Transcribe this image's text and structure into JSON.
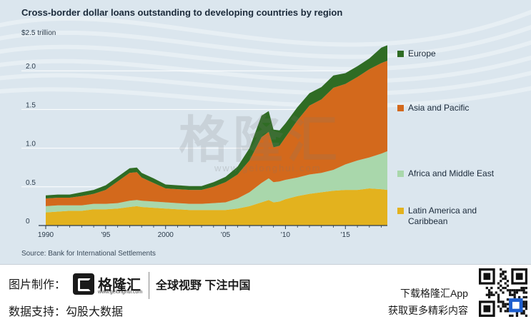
{
  "chart_data": {
    "type": "area",
    "stacked": true,
    "title": "Cross-border dollar loans outstanding to developing countries by region",
    "y_unit_label": "$2.5 trillion",
    "ylim": [
      0,
      2.5
    ],
    "xlim": [
      1990,
      2018.5
    ],
    "x_ticks": [
      1990,
      1995,
      2000,
      2005,
      2010,
      2015
    ],
    "x_tick_labels": [
      "1990",
      "'95",
      "2000",
      "'05",
      "'10",
      "'15"
    ],
    "y_ticks": [
      0,
      0.5,
      1.0,
      1.5,
      2.0
    ],
    "y_tick_labels": [
      "0",
      "0.5",
      "1.0",
      "1.5",
      "2.0"
    ],
    "x": [
      1990,
      1991,
      1992,
      1993,
      1994,
      1995,
      1996,
      1997,
      1997.6,
      1998,
      1999,
      2000,
      2001,
      2002,
      2003,
      2004,
      2005,
      2006,
      2007,
      2008,
      2008.6,
      2009,
      2009.5,
      2010,
      2011,
      2012,
      2013,
      2014,
      2015,
      2016,
      2017,
      2018,
      2018.5
    ],
    "series": [
      {
        "name": "Latin America and Caribbean",
        "color": "#e3b21e",
        "values": [
          0.17,
          0.18,
          0.19,
          0.19,
          0.21,
          0.21,
          0.22,
          0.24,
          0.25,
          0.24,
          0.23,
          0.22,
          0.21,
          0.2,
          0.2,
          0.2,
          0.2,
          0.22,
          0.25,
          0.3,
          0.33,
          0.3,
          0.31,
          0.34,
          0.38,
          0.41,
          0.43,
          0.45,
          0.46,
          0.46,
          0.48,
          0.47,
          0.46
        ]
      },
      {
        "name": "Africa and Middle East",
        "color": "#a9d7ab",
        "values": [
          0.08,
          0.08,
          0.07,
          0.07,
          0.07,
          0.07,
          0.07,
          0.08,
          0.08,
          0.08,
          0.08,
          0.08,
          0.08,
          0.08,
          0.08,
          0.09,
          0.1,
          0.13,
          0.18,
          0.25,
          0.28,
          0.26,
          0.26,
          0.25,
          0.24,
          0.25,
          0.25,
          0.27,
          0.33,
          0.38,
          0.4,
          0.46,
          0.5
        ]
      },
      {
        "name": "Asia and Pacific",
        "color": "#d3691c",
        "values": [
          0.1,
          0.1,
          0.1,
          0.12,
          0.13,
          0.18,
          0.28,
          0.36,
          0.36,
          0.3,
          0.24,
          0.18,
          0.18,
          0.18,
          0.18,
          0.21,
          0.26,
          0.31,
          0.41,
          0.59,
          0.6,
          0.45,
          0.46,
          0.55,
          0.74,
          0.89,
          0.95,
          1.06,
          1.04,
          1.08,
          1.14,
          1.17,
          1.17
        ]
      },
      {
        "name": "Europe",
        "color": "#2f6c24",
        "values": [
          0.04,
          0.04,
          0.04,
          0.05,
          0.05,
          0.06,
          0.06,
          0.06,
          0.06,
          0.06,
          0.06,
          0.05,
          0.05,
          0.05,
          0.05,
          0.06,
          0.07,
          0.1,
          0.16,
          0.28,
          0.27,
          0.23,
          0.2,
          0.18,
          0.17,
          0.16,
          0.16,
          0.16,
          0.14,
          0.14,
          0.14,
          0.2,
          0.2
        ]
      }
    ],
    "legend": [
      {
        "name": "Europe",
        "color": "#2f6c24"
      },
      {
        "name": "Asia and Pacific",
        "color": "#d3691c"
      },
      {
        "name": "Africa and Middle East",
        "color": "#a9d7ab"
      },
      {
        "name": "Latin America and\nCaribbean",
        "color": "#e3b21e"
      }
    ],
    "legend_placement": "right",
    "grid": true
  },
  "source": "Source: Bank for International Settlements",
  "watermark": {
    "text": "格隆汇",
    "sub": "www.gelonghui.com"
  },
  "footer": {
    "made_by_label": "图片制作：",
    "brand_name": "格隆汇",
    "brand_url": "www.gelonghui.com",
    "slogan": "全球视野 下注中国",
    "data_support_label": "数据支持：",
    "data_support_value": "勾股大数据",
    "app_line1": "下载格隆汇App",
    "app_line2": "获取更多精彩内容"
  }
}
